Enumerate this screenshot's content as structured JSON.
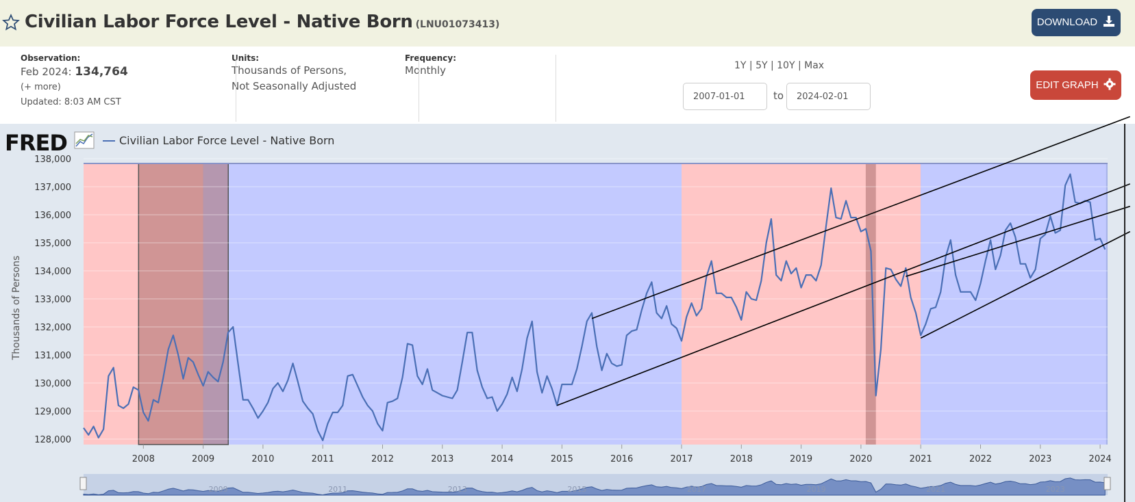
{
  "header": {
    "title": "Civilian Labor Force Level - Native Born",
    "series_id": "(LNU01073413)",
    "download_label": "DOWNLOAD"
  },
  "info": {
    "observation_label": "Observation:",
    "observation_period": "Feb 2024:",
    "observation_value": "134,764",
    "more_label": "(+ more)",
    "updated": "Updated: 8:03 AM CST",
    "units_label": "Units:",
    "units_line1": "Thousands of Persons,",
    "units_line2": "Not Seasonally Adjusted",
    "frequency_label": "Frequency:",
    "frequency_value": "Monthly",
    "ranges": "1Y | 5Y | 10Y | Max",
    "start_date": "2007-01-01",
    "to_label": "to",
    "end_date": "2024-02-01",
    "edit_label": "EDIT GRAPH"
  },
  "logo": "FRED",
  "icons": [
    "star-icon",
    "download-icon",
    "gear-icon",
    "fred-chart-icon"
  ],
  "colors": {
    "line": "#4a6fb5",
    "red_band": "#ffc6c6",
    "blue_band": "#c3caff",
    "recession": "rgba(170,110,110,0.55)"
  },
  "chart_data": {
    "type": "line",
    "legend": "Civilian Labor Force Level - Native Born",
    "ylabel": "Thousands of Persons",
    "ylim": [
      127800,
      138200
    ],
    "yticks": [
      128000,
      129000,
      130000,
      131000,
      132000,
      133000,
      134000,
      135000,
      136000,
      137000,
      138000
    ],
    "ytick_labels": [
      "128,000",
      "129,000",
      "130,000",
      "131,000",
      "132,000",
      "133,000",
      "134,000",
      "135,000",
      "136,000",
      "137,000",
      "138,000"
    ],
    "xlim": [
      2007.0,
      2024.38
    ],
    "xticks": [
      2008,
      2009,
      2010,
      2011,
      2012,
      2013,
      2014,
      2015,
      2016,
      2017,
      2018,
      2019,
      2020,
      2021,
      2022,
      2023,
      2024
    ],
    "xtick_labels": [
      "2008",
      "2009",
      "2010",
      "2011",
      "2012",
      "2013",
      "2014",
      "2015",
      "2016",
      "2017",
      "2018",
      "2019",
      "2020",
      "2021",
      "2022",
      "2023",
      "2024"
    ],
    "bands": [
      {
        "start": 2007.0,
        "end": 2009.0,
        "color": "red"
      },
      {
        "start": 2009.0,
        "end": 2017.0,
        "color": "blue"
      },
      {
        "start": 2017.0,
        "end": 2021.0,
        "color": "red"
      },
      {
        "start": 2021.0,
        "end": 2024.1,
        "color": "blue"
      }
    ],
    "recessions": [
      {
        "start": 2007.92,
        "end": 2009.42
      },
      {
        "start": 2020.08,
        "end": 2020.25
      }
    ],
    "trendlines": [
      {
        "x1": 2015.5,
        "y1": 132300,
        "x2": 2024.5,
        "y2": 139500
      },
      {
        "x1": 2014.92,
        "y1": 129200,
        "x2": 2024.5,
        "y2": 137100
      },
      {
        "x1": 2020.75,
        "y1": 133800,
        "x2": 2024.5,
        "y2": 136300
      },
      {
        "x1": 2021.0,
        "y1": 131600,
        "x2": 2024.5,
        "y2": 135400
      }
    ],
    "series": [
      {
        "name": "Civilian Labor Force Level - Native Born",
        "x": [
          2007.0,
          2007.083,
          2007.167,
          2007.25,
          2007.333,
          2007.417,
          2007.5,
          2007.583,
          2007.667,
          2007.75,
          2007.833,
          2007.917,
          2008.0,
          2008.083,
          2008.167,
          2008.25,
          2008.333,
          2008.417,
          2008.5,
          2008.583,
          2008.667,
          2008.75,
          2008.833,
          2008.917,
          2009.0,
          2009.083,
          2009.167,
          2009.25,
          2009.333,
          2009.417,
          2009.5,
          2009.583,
          2009.667,
          2009.75,
          2009.833,
          2009.917,
          2010.0,
          2010.083,
          2010.167,
          2010.25,
          2010.333,
          2010.417,
          2010.5,
          2010.583,
          2010.667,
          2010.75,
          2010.833,
          2010.917,
          2011.0,
          2011.083,
          2011.167,
          2011.25,
          2011.333,
          2011.417,
          2011.5,
          2011.583,
          2011.667,
          2011.75,
          2011.833,
          2011.917,
          2012.0,
          2012.083,
          2012.167,
          2012.25,
          2012.333,
          2012.417,
          2012.5,
          2012.583,
          2012.667,
          2012.75,
          2012.833,
          2012.917,
          2013.0,
          2013.083,
          2013.167,
          2013.25,
          2013.333,
          2013.417,
          2013.5,
          2013.583,
          2013.667,
          2013.75,
          2013.833,
          2013.917,
          2014.0,
          2014.083,
          2014.167,
          2014.25,
          2014.333,
          2014.417,
          2014.5,
          2014.583,
          2014.667,
          2014.75,
          2014.833,
          2014.917,
          2015.0,
          2015.083,
          2015.167,
          2015.25,
          2015.333,
          2015.417,
          2015.5,
          2015.583,
          2015.667,
          2015.75,
          2015.833,
          2015.917,
          2016.0,
          2016.083,
          2016.167,
          2016.25,
          2016.333,
          2016.417,
          2016.5,
          2016.583,
          2016.667,
          2016.75,
          2016.833,
          2016.917,
          2017.0,
          2017.083,
          2017.167,
          2017.25,
          2017.333,
          2017.417,
          2017.5,
          2017.583,
          2017.667,
          2017.75,
          2017.833,
          2017.917,
          2018.0,
          2018.083,
          2018.167,
          2018.25,
          2018.333,
          2018.417,
          2018.5,
          2018.583,
          2018.667,
          2018.75,
          2018.833,
          2018.917,
          2019.0,
          2019.083,
          2019.167,
          2019.25,
          2019.333,
          2019.417,
          2019.5,
          2019.583,
          2019.667,
          2019.75,
          2019.833,
          2019.917,
          2020.0,
          2020.083,
          2020.167,
          2020.25,
          2020.333,
          2020.417,
          2020.5,
          2020.583,
          2020.667,
          2020.75,
          2020.833,
          2020.917,
          2021.0,
          2021.083,
          2021.167,
          2021.25,
          2021.333,
          2021.417,
          2021.5,
          2021.583,
          2021.667,
          2021.75,
          2021.833,
          2021.917,
          2022.0,
          2022.083,
          2022.167,
          2022.25,
          2022.333,
          2022.417,
          2022.5,
          2022.583,
          2022.667,
          2022.75,
          2022.833,
          2022.917,
          2023.0,
          2023.083,
          2023.167,
          2023.25,
          2023.333,
          2023.417,
          2023.5,
          2023.583,
          2023.667,
          2023.75,
          2023.833,
          2023.917,
          2024.0,
          2024.083
        ],
        "values": [
          128400,
          128150,
          128450,
          128050,
          128350,
          130250,
          130550,
          129200,
          129100,
          129250,
          129850,
          129750,
          128950,
          128650,
          129400,
          129300,
          130200,
          131200,
          131700,
          131000,
          130150,
          130900,
          130750,
          130300,
          129900,
          130400,
          130200,
          130050,
          130750,
          131800,
          132000,
          130700,
          129400,
          129400,
          129100,
          128750,
          129000,
          129300,
          129800,
          130000,
          129700,
          130100,
          130700,
          130050,
          129350,
          129100,
          128900,
          128300,
          127950,
          128550,
          128950,
          128950,
          129200,
          130250,
          130300,
          129900,
          129500,
          129200,
          129000,
          128550,
          128300,
          129300,
          129350,
          129450,
          130200,
          131400,
          131350,
          130250,
          129950,
          130500,
          129750,
          129650,
          129550,
          129500,
          129450,
          129750,
          130750,
          131800,
          131800,
          130450,
          129850,
          129450,
          129500,
          129000,
          129250,
          129600,
          130200,
          129700,
          130500,
          131600,
          132200,
          130400,
          129650,
          130250,
          129800,
          129200,
          129950,
          129950,
          129950,
          130500,
          131300,
          132200,
          132500,
          131300,
          130450,
          131050,
          130700,
          130600,
          130650,
          131700,
          131850,
          131900,
          132600,
          133200,
          133600,
          132500,
          132300,
          132750,
          132100,
          131950,
          131500,
          132350,
          132850,
          132400,
          132650,
          133800,
          134350,
          133200,
          133200,
          133050,
          133050,
          132700,
          132250,
          133250,
          133000,
          132950,
          133650,
          135000,
          135850,
          133850,
          133650,
          134350,
          133900,
          134100,
          133400,
          133850,
          133850,
          133650,
          134200,
          135600,
          136950,
          135900,
          135850,
          136500,
          135900,
          135900,
          135400,
          135500,
          134700,
          129550,
          131200,
          134100,
          134050,
          133700,
          133450,
          134100,
          133050,
          132500,
          131700,
          132100,
          132650,
          132700,
          133250,
          134500,
          135100,
          133850,
          133250,
          133250,
          133250,
          132950,
          133550,
          134350,
          135100,
          134050,
          134550,
          135450,
          135700,
          135200,
          134250,
          134250,
          133750,
          134050,
          135150,
          135300,
          135950,
          135350,
          135450,
          137050,
          137450,
          136450,
          136400,
          136500,
          136450,
          135100,
          135150,
          134764
        ]
      }
    ]
  }
}
